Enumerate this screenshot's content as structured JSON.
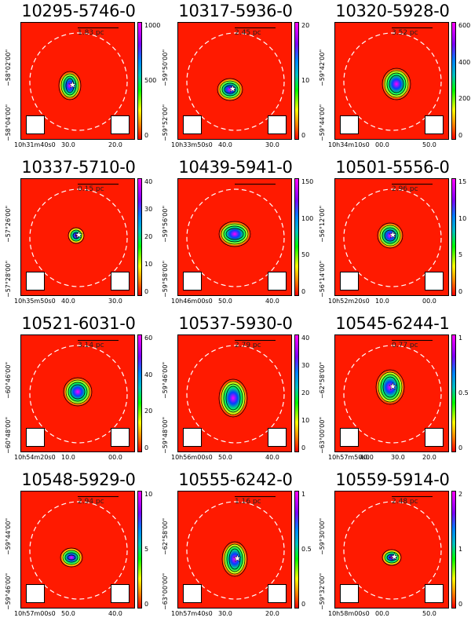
{
  "panels": [
    {
      "title": "10295-5746-0",
      "scale": "1.83 pc",
      "cbar": [
        "1000",
        "500",
        "0"
      ],
      "y": [
        "−58°02'00\"",
        "−58°04'00\""
      ],
      "x": [
        "10h31m40s0",
        "30.0",
        "20.0"
      ],
      "star": true
    },
    {
      "title": "10317-5936-0",
      "scale": "2.45 pc",
      "cbar": [
        "20",
        "10",
        "0"
      ],
      "y": [
        "−59°50'00\"",
        "−59°52'00\""
      ],
      "x": [
        "10h33m50s0",
        "40.0",
        "30.0"
      ],
      "star": true
    },
    {
      "title": "10320-5928-0",
      "scale": "3.52 pc",
      "cbar": [
        "600",
        "400",
        "200",
        "0"
      ],
      "y": [
        "−59°42'00\"",
        "−59°44'00\""
      ],
      "x": [
        "10h34m10s0",
        "00.0",
        "50.0"
      ],
      "star": false
    },
    {
      "title": "10337-5710-0",
      "scale": "0.15 pc",
      "cbar": [
        "40",
        "30",
        "20",
        "10",
        "0"
      ],
      "y": [
        "−57°26'00\"",
        "−57°28'00\""
      ],
      "x": [
        "10h35m50s0",
        "40.0",
        "30.0"
      ],
      "star": true
    },
    {
      "title": "10439-5941-0",
      "scale": "",
      "cbar": [
        "150",
        "100",
        "50",
        "0"
      ],
      "y": [
        "−59°56'00\"",
        "−59°58'00\""
      ],
      "x": [
        "10h46m00s0",
        "50.0",
        "40.0"
      ],
      "star": false
    },
    {
      "title": "10501-5556-0",
      "scale": "2.96 pc",
      "cbar": [
        "15",
        "10",
        "5",
        "0"
      ],
      "y": [
        "−56°12'00\"",
        "−56°14'00\""
      ],
      "x": [
        "10h52m20s0",
        "10.0",
        "00.0"
      ],
      "star": true
    },
    {
      "title": "10521-6031-0",
      "scale": "3.14 pc",
      "cbar": [
        "60",
        "40",
        "20",
        "0"
      ],
      "y": [
        "−60°46'00\"",
        "−60°48'00\""
      ],
      "x": [
        "10h54m20s0",
        "10.0",
        "00.0"
      ],
      "star": false
    },
    {
      "title": "10537-5930-0",
      "scale": "2.79 pc",
      "cbar": [
        "40",
        "30",
        "20",
        "10",
        "0"
      ],
      "y": [
        "−59°46'00\"",
        "−59°48'00\""
      ],
      "x": [
        "10h56m00s0",
        "50.0",
        "40.0"
      ],
      "star": false
    },
    {
      "title": "10545-6244-1",
      "scale": "0.77 pc",
      "cbar": [
        "1",
        "0.5",
        "0"
      ],
      "y": [
        "−62°58'00\"",
        "−63°00'00\""
      ],
      "x": [
        "10h57m50s0",
        "40.0",
        "30.0",
        "20.0"
      ],
      "star": true
    },
    {
      "title": "10548-5929-0",
      "scale": "2.94 pc",
      "cbar": [
        "10",
        "5",
        "0"
      ],
      "y": [
        "−59°44'00\"",
        "−59°46'00\""
      ],
      "x": [
        "10h57m00s0",
        "50.0",
        "40.0"
      ],
      "star": false
    },
    {
      "title": "10555-6242-0",
      "scale": "1.16 pc",
      "cbar": [
        "1",
        "0.5",
        "0"
      ],
      "y": [
        "−62°58'00\"",
        "−63°00'00\""
      ],
      "x": [
        "10h57m40s0",
        "30.0",
        "20.0"
      ],
      "star": true
    },
    {
      "title": "10559-5914-0",
      "scale": "2.48 pc",
      "cbar": [
        "2",
        "1",
        "0"
      ],
      "y": [
        "−59°30'00\"",
        "−59°32'00\""
      ],
      "x": [
        "10h58m00s0",
        "00.0",
        "50.0"
      ],
      "star": true
    }
  ]
}
